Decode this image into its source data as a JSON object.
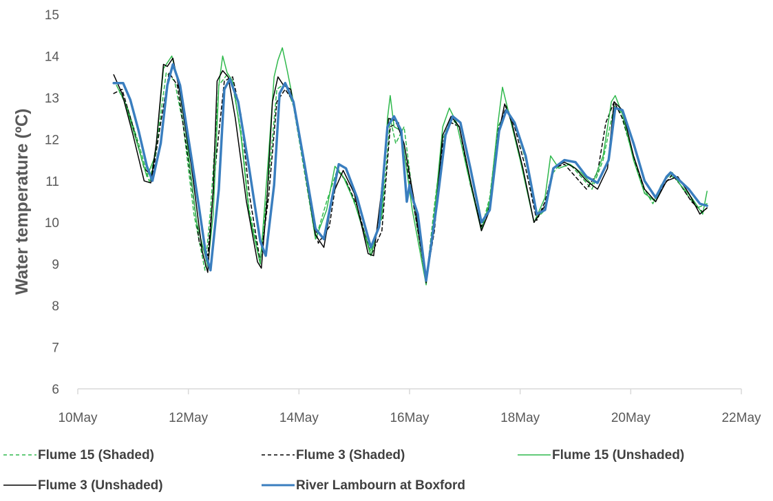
{
  "chart_data": {
    "type": "line",
    "title": "",
    "xlabel": "",
    "ylabel": "Water temperature (ºC)",
    "xlim": [
      10,
      22
    ],
    "ylim": [
      6,
      15
    ],
    "x_ticks": [
      {
        "value": 10,
        "label": "10May"
      },
      {
        "value": 12,
        "label": "12May"
      },
      {
        "value": 14,
        "label": "14May"
      },
      {
        "value": 16,
        "label": "16May"
      },
      {
        "value": 18,
        "label": "18May"
      },
      {
        "value": 20,
        "label": "20May"
      },
      {
        "value": 22,
        "label": "22May"
      }
    ],
    "y_ticks": [
      6,
      7,
      8,
      9,
      10,
      11,
      12,
      13,
      14,
      15
    ],
    "grid": false,
    "legend_position": "bottom",
    "series": [
      {
        "name": "Flume 15 (Shaded)",
        "color": "#2eb84b",
        "dash": "dashed",
        "width": 1.5,
        "x": [
          10.75,
          10.9,
          11.1,
          11.3,
          11.45,
          11.6,
          11.75,
          11.9,
          12.1,
          12.3,
          12.4,
          12.55,
          12.7,
          12.8,
          12.95,
          13.1,
          13.3,
          13.45,
          13.6,
          13.75,
          13.9,
          14.1,
          14.3,
          14.5,
          14.7,
          14.85,
          15.05,
          15.3,
          15.5,
          15.65,
          15.75,
          15.9,
          16.1,
          16.3,
          16.45,
          16.6,
          16.75,
          16.9,
          17.1,
          17.3,
          17.45,
          17.6,
          17.75,
          17.9,
          18.1,
          18.3,
          18.45,
          18.6,
          18.75,
          18.9,
          19.1,
          19.3,
          19.5,
          19.7,
          19.8,
          20.0,
          20.2,
          20.4,
          20.55,
          20.7,
          20.85,
          21.0,
          21.2,
          21.38
        ],
        "y": [
          13.15,
          12.75,
          11.9,
          10.95,
          12.1,
          13.6,
          13.4,
          12.4,
          10.2,
          8.85,
          10.3,
          13.3,
          13.55,
          13.3,
          12.2,
          10.3,
          9.1,
          11.0,
          13.2,
          13.35,
          12.8,
          11.2,
          9.6,
          10.5,
          11.3,
          11.0,
          10.3,
          9.3,
          10.1,
          12.5,
          11.9,
          12.3,
          10.2,
          8.6,
          10.4,
          12.0,
          12.5,
          12.3,
          11.0,
          9.85,
          10.6,
          12.3,
          12.7,
          12.4,
          11.5,
          10.1,
          10.3,
          11.2,
          11.45,
          11.4,
          11.1,
          10.8,
          11.5,
          12.8,
          12.7,
          11.8,
          10.9,
          10.45,
          10.9,
          11.15,
          11.0,
          10.7,
          10.35,
          10.45
        ]
      },
      {
        "name": "Flume 3 (Shaded)",
        "color": "#000000",
        "dash": "dashed",
        "width": 1.5,
        "x": [
          10.65,
          10.8,
          11.0,
          11.2,
          11.35,
          11.5,
          11.65,
          11.8,
          12.0,
          12.2,
          12.35,
          12.5,
          12.65,
          12.8,
          12.95,
          13.1,
          13.3,
          13.45,
          13.6,
          13.75,
          13.9,
          14.1,
          14.35,
          14.55,
          14.7,
          14.85,
          15.05,
          15.3,
          15.5,
          15.65,
          15.8,
          16.0,
          16.3,
          16.45,
          16.6,
          16.75,
          16.9,
          17.1,
          17.3,
          17.45,
          17.6,
          17.75,
          17.9,
          18.1,
          18.3,
          18.45,
          18.6,
          18.8,
          19.0,
          19.2,
          19.4,
          19.55,
          19.7,
          19.85,
          20.05,
          20.25,
          20.45,
          20.6,
          20.75,
          20.9,
          21.1,
          21.3,
          21.38
        ],
        "y": [
          13.1,
          13.2,
          12.3,
          11.3,
          11.1,
          12.4,
          13.6,
          13.3,
          11.5,
          9.5,
          9.2,
          11.5,
          13.4,
          13.5,
          12.6,
          10.7,
          9.05,
          10.6,
          12.9,
          13.2,
          12.9,
          11.4,
          9.5,
          9.9,
          11.25,
          11.0,
          10.4,
          9.2,
          9.8,
          12.3,
          12.4,
          11.0,
          8.6,
          9.8,
          11.9,
          12.4,
          12.3,
          10.9,
          9.9,
          10.4,
          12.2,
          12.8,
          12.3,
          11.3,
          10.05,
          10.5,
          11.3,
          11.4,
          11.1,
          10.8,
          11.2,
          12.4,
          12.9,
          12.5,
          11.6,
          10.7,
          10.5,
          10.9,
          11.15,
          10.9,
          10.5,
          10.25,
          10.35
        ]
      },
      {
        "name": "Flume 15 (Unshaded)",
        "color": "#2eb84b",
        "dash": "solid",
        "width": 1.5,
        "x": [
          10.7,
          10.85,
          11.05,
          11.25,
          11.4,
          11.55,
          11.65,
          11.7,
          11.8,
          11.95,
          12.15,
          12.35,
          12.45,
          12.55,
          12.62,
          12.7,
          12.8,
          12.95,
          13.1,
          13.3,
          13.45,
          13.55,
          13.62,
          13.7,
          13.78,
          13.9,
          14.1,
          14.3,
          14.5,
          14.65,
          14.8,
          15.0,
          15.3,
          15.5,
          15.6,
          15.65,
          15.72,
          15.85,
          16.05,
          16.3,
          16.45,
          16.6,
          16.72,
          16.85,
          17.05,
          17.3,
          17.45,
          17.6,
          17.68,
          17.8,
          18.0,
          18.25,
          18.45,
          18.55,
          18.7,
          18.9,
          19.1,
          19.3,
          19.5,
          19.65,
          19.72,
          19.85,
          20.05,
          20.25,
          20.45,
          20.6,
          20.75,
          20.9,
          21.1,
          21.3,
          21.38
        ],
        "y": [
          13.3,
          12.9,
          12.0,
          11.1,
          11.6,
          13.7,
          13.9,
          14.0,
          13.5,
          12.2,
          10.0,
          8.95,
          10.2,
          13.3,
          14.0,
          13.6,
          13.4,
          12.1,
          10.2,
          9.0,
          11.6,
          13.5,
          13.9,
          14.2,
          13.7,
          12.9,
          11.3,
          9.6,
          10.3,
          11.35,
          11.1,
          10.5,
          9.2,
          10.2,
          12.5,
          13.05,
          12.3,
          12.2,
          10.3,
          8.5,
          10.2,
          12.3,
          12.75,
          12.4,
          11.2,
          9.8,
          10.5,
          12.4,
          13.25,
          12.6,
          11.5,
          10.0,
          10.6,
          11.6,
          11.3,
          11.4,
          11.2,
          10.9,
          11.6,
          12.9,
          13.05,
          12.6,
          11.5,
          10.7,
          10.5,
          11.0,
          11.2,
          10.9,
          10.6,
          10.2,
          10.75
        ]
      },
      {
        "name": "Flume 3 (Unshaded)",
        "color": "#000000",
        "dash": "solid",
        "width": 1.5,
        "x": [
          10.65,
          10.8,
          11.0,
          11.2,
          11.32,
          11.42,
          11.55,
          11.62,
          11.72,
          11.85,
          12.05,
          12.25,
          12.35,
          12.45,
          12.52,
          12.62,
          12.72,
          12.85,
          13.05,
          13.25,
          13.32,
          13.42,
          13.52,
          13.62,
          13.72,
          13.85,
          14.05,
          14.3,
          14.45,
          14.62,
          14.8,
          15.0,
          15.25,
          15.35,
          15.48,
          15.62,
          15.75,
          15.9,
          16.1,
          16.3,
          16.45,
          16.6,
          16.75,
          16.9,
          17.1,
          17.3,
          17.45,
          17.62,
          17.72,
          17.85,
          18.05,
          18.25,
          18.45,
          18.6,
          18.8,
          19.0,
          19.2,
          19.4,
          19.58,
          19.7,
          19.85,
          20.05,
          20.25,
          20.45,
          20.65,
          20.85,
          21.05,
          21.25,
          21.38
        ],
        "y": [
          13.55,
          13.1,
          12.1,
          11.0,
          10.95,
          11.9,
          13.8,
          13.75,
          13.95,
          13.1,
          11.4,
          9.3,
          8.8,
          10.8,
          13.4,
          13.65,
          13.5,
          12.5,
          10.5,
          9.05,
          8.9,
          10.5,
          12.9,
          13.5,
          13.3,
          13.2,
          11.7,
          9.7,
          9.4,
          10.7,
          11.25,
          10.7,
          9.25,
          9.2,
          10.6,
          12.5,
          12.45,
          11.9,
          10.4,
          8.55,
          9.9,
          12.1,
          12.55,
          12.3,
          11.0,
          9.8,
          10.3,
          12.2,
          12.85,
          12.4,
          11.3,
          10.0,
          10.4,
          11.3,
          11.45,
          11.3,
          11.0,
          10.8,
          11.3,
          12.9,
          12.7,
          11.6,
          10.8,
          10.5,
          11.0,
          11.1,
          10.7,
          10.2,
          10.35
        ]
      },
      {
        "name": "River Lambourn at Boxford",
        "color": "#3a7ebf",
        "dash": "solid",
        "width": 3.5,
        "x": [
          10.65,
          10.82,
          10.95,
          11.1,
          11.25,
          11.35,
          11.5,
          11.62,
          11.72,
          11.85,
          12.05,
          12.2,
          12.32,
          12.4,
          12.55,
          12.65,
          12.75,
          12.9,
          13.1,
          13.3,
          13.4,
          13.55,
          13.65,
          13.75,
          13.9,
          14.1,
          14.3,
          14.45,
          14.6,
          14.72,
          14.85,
          15.05,
          15.3,
          15.45,
          15.6,
          15.72,
          15.85,
          15.95,
          16.0,
          16.05,
          16.15,
          16.3,
          16.5,
          16.65,
          16.78,
          16.92,
          17.1,
          17.3,
          17.45,
          17.62,
          17.75,
          17.9,
          18.1,
          18.3,
          18.45,
          18.6,
          18.8,
          19.0,
          19.2,
          19.4,
          19.6,
          19.72,
          19.85,
          20.05,
          20.25,
          20.45,
          20.65,
          20.72,
          20.85,
          21.05,
          21.25,
          21.38
        ],
        "y": [
          13.35,
          13.35,
          12.95,
          12.2,
          11.35,
          11.0,
          11.9,
          13.3,
          13.8,
          13.3,
          11.6,
          10.3,
          9.2,
          8.85,
          10.8,
          13.2,
          13.45,
          12.9,
          11.3,
          9.55,
          9.2,
          10.9,
          13.1,
          13.35,
          12.9,
          11.4,
          9.85,
          9.6,
          10.6,
          11.4,
          11.3,
          10.6,
          9.4,
          9.9,
          12.3,
          12.55,
          12.2,
          10.5,
          10.9,
          10.6,
          10.2,
          8.6,
          10.5,
          12.1,
          12.55,
          12.4,
          11.3,
          10.0,
          10.3,
          12.2,
          12.7,
          12.4,
          11.6,
          10.2,
          10.3,
          11.3,
          11.5,
          11.45,
          11.1,
          10.95,
          11.5,
          12.75,
          12.7,
          11.9,
          11.0,
          10.6,
          11.1,
          11.2,
          11.05,
          10.8,
          10.45,
          10.4
        ]
      }
    ]
  }
}
